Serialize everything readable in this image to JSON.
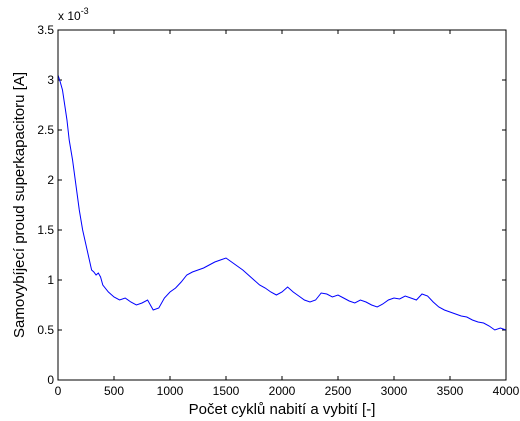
{
  "chart_data": {
    "type": "line",
    "title": "",
    "xlabel": "Počet cyklů nabití a vybití [-]",
    "ylabel": "Samovybíjecí proud superkapacitoru [A]",
    "y_multiplier_label": "x 10",
    "y_multiplier_exponent": "-3",
    "xlim": [
      0,
      4000
    ],
    "ylim": [
      0,
      3.5
    ],
    "xticks": [
      0,
      500,
      1000,
      1500,
      2000,
      2500,
      3000,
      3500,
      4000
    ],
    "yticks": [
      0,
      0.5,
      1,
      1.5,
      2,
      2.5,
      3,
      3.5
    ],
    "xtick_labels": [
      "0",
      "500",
      "1000",
      "1500",
      "2000",
      "2500",
      "3000",
      "3500",
      "4000"
    ],
    "ytick_labels": [
      "0",
      "0.5",
      "1",
      "1.5",
      "2",
      "2.5",
      "3",
      "3.5"
    ],
    "grid": false,
    "legend": "none",
    "line_color": "#0000ff",
    "series": [
      {
        "x": [
          0,
          20,
          40,
          60,
          80,
          100,
          130,
          160,
          190,
          220,
          250,
          280,
          300,
          320,
          340,
          360,
          380,
          400,
          450,
          500,
          550,
          600,
          650,
          700,
          750,
          800,
          850,
          900,
          950,
          1000,
          1050,
          1100,
          1150,
          1200,
          1250,
          1300,
          1350,
          1400,
          1450,
          1500,
          1550,
          1600,
          1650,
          1700,
          1750,
          1800,
          1850,
          1900,
          1950,
          2000,
          2050,
          2100,
          2150,
          2200,
          2250,
          2300,
          2350,
          2400,
          2450,
          2500,
          2550,
          2600,
          2650,
          2700,
          2750,
          2800,
          2850,
          2900,
          2950,
          3000,
          3050,
          3100,
          3150,
          3200,
          3250,
          3300,
          3350,
          3400,
          3450,
          3500,
          3550,
          3600,
          3650,
          3700,
          3750,
          3800,
          3850,
          3900,
          3950,
          4000
        ],
        "y": [
          3.05,
          2.98,
          2.9,
          2.75,
          2.6,
          2.4,
          2.2,
          1.95,
          1.7,
          1.5,
          1.35,
          1.2,
          1.1,
          1.08,
          1.05,
          1.07,
          1.03,
          0.95,
          0.88,
          0.83,
          0.8,
          0.82,
          0.78,
          0.75,
          0.77,
          0.8,
          0.7,
          0.72,
          0.82,
          0.88,
          0.92,
          0.98,
          1.05,
          1.08,
          1.1,
          1.12,
          1.15,
          1.18,
          1.2,
          1.22,
          1.18,
          1.14,
          1.1,
          1.05,
          1.0,
          0.95,
          0.92,
          0.88,
          0.85,
          0.88,
          0.93,
          0.88,
          0.84,
          0.8,
          0.78,
          0.8,
          0.87,
          0.86,
          0.83,
          0.85,
          0.82,
          0.79,
          0.77,
          0.8,
          0.78,
          0.75,
          0.73,
          0.76,
          0.8,
          0.82,
          0.81,
          0.84,
          0.82,
          0.8,
          0.86,
          0.84,
          0.78,
          0.73,
          0.7,
          0.68,
          0.66,
          0.64,
          0.63,
          0.6,
          0.58,
          0.57,
          0.54,
          0.5,
          0.52,
          0.5
        ]
      }
    ]
  }
}
